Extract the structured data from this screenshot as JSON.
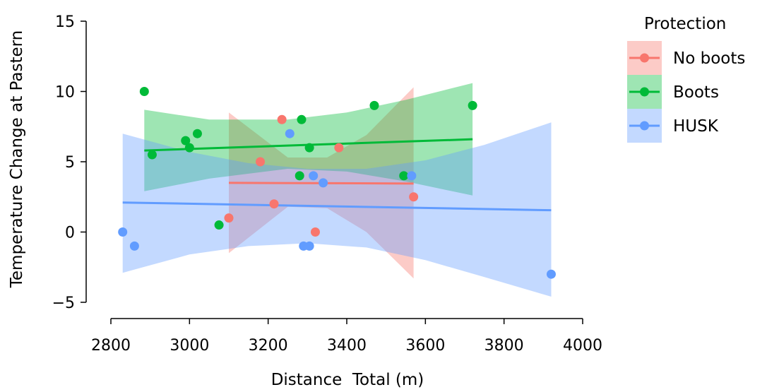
{
  "chart_data": {
    "type": "scatter",
    "xlabel": "Distance  Total (m)",
    "ylabel": "Temperature Change at Pastern",
    "xlim": [
      2800,
      4000
    ],
    "ylim": [
      -5,
      15
    ],
    "xticks": [
      2800,
      3000,
      3200,
      3400,
      3600,
      3800,
      4000
    ],
    "yticks": [
      -5,
      0,
      5,
      10,
      15
    ],
    "xtick_labels": [
      "2800",
      "3000",
      "3200",
      "3400",
      "3600",
      "3800",
      "4000"
    ],
    "ytick_labels": [
      "−5",
      "0",
      "5",
      "10",
      "15"
    ],
    "grid": false,
    "legend": {
      "title": "Protection",
      "position": "right"
    },
    "series": [
      {
        "name": "No boots",
        "color": "#F8766D",
        "points": [
          [
            3100,
            1
          ],
          [
            3180,
            5
          ],
          [
            3215,
            2
          ],
          [
            3235,
            8
          ],
          [
            3320,
            0
          ],
          [
            3380,
            6
          ],
          [
            3570,
            2.5
          ]
        ],
        "fit": {
          "x": [
            3100,
            3570
          ],
          "y": [
            3.5,
            3.45
          ]
        },
        "ci_lower": [
          [
            3100,
            -1.5
          ],
          [
            3250,
            1.8
          ],
          [
            3350,
            1.7
          ],
          [
            3450,
            0
          ],
          [
            3570,
            -3.3
          ]
        ],
        "ci_upper": [
          [
            3100,
            8.5
          ],
          [
            3250,
            5.3
          ],
          [
            3350,
            5.3
          ],
          [
            3450,
            6.9
          ],
          [
            3570,
            10.3
          ]
        ]
      },
      {
        "name": "Boots",
        "color": "#00BA38",
        "points": [
          [
            2885,
            10
          ],
          [
            2905,
            5.5
          ],
          [
            2990,
            6.5
          ],
          [
            3000,
            6
          ],
          [
            3020,
            7
          ],
          [
            3075,
            0.5
          ],
          [
            3280,
            4
          ],
          [
            3285,
            8
          ],
          [
            3305,
            6
          ],
          [
            3470,
            9
          ],
          [
            3545,
            4
          ],
          [
            3720,
            9
          ]
        ],
        "fit": {
          "x": [
            2885,
            3720
          ],
          "y": [
            5.8,
            6.6
          ]
        },
        "ci_lower": [
          [
            2885,
            2.9
          ],
          [
            3050,
            3.8
          ],
          [
            3250,
            4.5
          ],
          [
            3400,
            4.3
          ],
          [
            3550,
            3.6
          ],
          [
            3720,
            2.6
          ]
        ],
        "ci_upper": [
          [
            2885,
            8.7
          ],
          [
            3050,
            8.0
          ],
          [
            3250,
            8.0
          ],
          [
            3400,
            8.5
          ],
          [
            3550,
            9.4
          ],
          [
            3720,
            10.6
          ]
        ]
      },
      {
        "name": "HUSK",
        "color": "#619CFF",
        "points": [
          [
            2830,
            0
          ],
          [
            2860,
            -1
          ],
          [
            3255,
            7
          ],
          [
            3290,
            -1
          ],
          [
            3305,
            -1
          ],
          [
            3315,
            4
          ],
          [
            3340,
            3.5
          ],
          [
            3565,
            4
          ],
          [
            3920,
            -3
          ]
        ],
        "fit": {
          "x": [
            2830,
            3920
          ],
          "y": [
            2.1,
            1.55
          ]
        },
        "ci_lower": [
          [
            2830,
            -2.9
          ],
          [
            3000,
            -1.6
          ],
          [
            3150,
            -1.0
          ],
          [
            3300,
            -0.8
          ],
          [
            3450,
            -1.1
          ],
          [
            3600,
            -2.0
          ],
          [
            3750,
            -3.2
          ],
          [
            3920,
            -4.6
          ]
        ],
        "ci_upper": [
          [
            2830,
            7.0
          ],
          [
            3000,
            5.7
          ],
          [
            3150,
            4.9
          ],
          [
            3300,
            4.5
          ],
          [
            3450,
            4.5
          ],
          [
            3600,
            5.1
          ],
          [
            3750,
            6.2
          ],
          [
            3920,
            7.8
          ]
        ]
      }
    ]
  }
}
